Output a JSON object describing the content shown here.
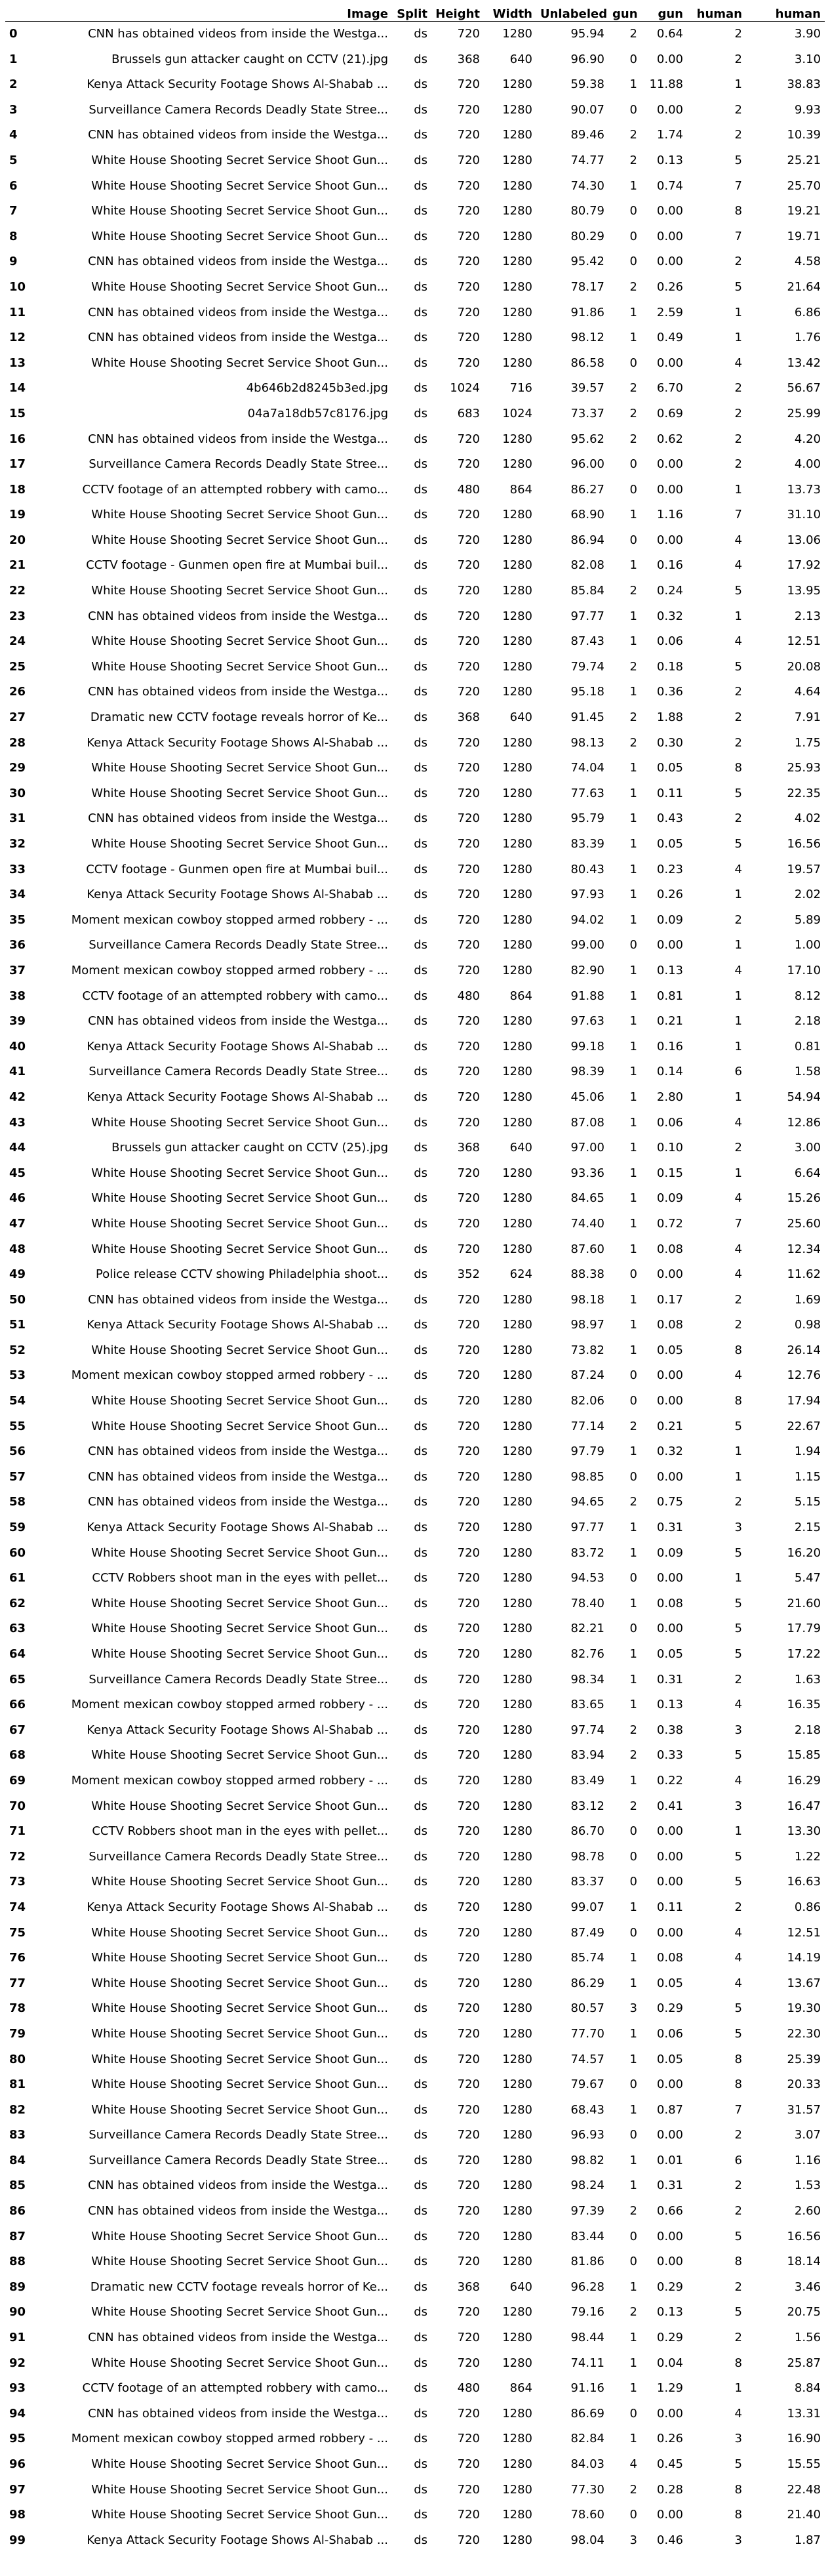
{
  "columns": [
    "",
    "Image",
    "Split",
    "Height",
    "Width",
    "Unlabeled",
    "gun",
    "gun",
    "human",
    "human"
  ],
  "rows": [
    [
      "0",
      "CNN has obtained videos from inside the Westga...",
      "ds",
      "720",
      "1280",
      "95.94",
      "2",
      "0.64",
      "2",
      "3.90"
    ],
    [
      "1",
      "Brussels gun attacker caught on CCTV (21).jpg",
      "ds",
      "368",
      "640",
      "96.90",
      "0",
      "0.00",
      "2",
      "3.10"
    ],
    [
      "2",
      "Kenya Attack Security Footage Shows Al-Shabab ...",
      "ds",
      "720",
      "1280",
      "59.38",
      "1",
      "11.88",
      "1",
      "38.83"
    ],
    [
      "3",
      "Surveillance Camera Records Deadly State Stree...",
      "ds",
      "720",
      "1280",
      "90.07",
      "0",
      "0.00",
      "2",
      "9.93"
    ],
    [
      "4",
      "CNN has obtained videos from inside the Westga...",
      "ds",
      "720",
      "1280",
      "89.46",
      "2",
      "1.74",
      "2",
      "10.39"
    ],
    [
      "5",
      "White House Shooting  Secret Service Shoot Gun...",
      "ds",
      "720",
      "1280",
      "74.77",
      "2",
      "0.13",
      "5",
      "25.21"
    ],
    [
      "6",
      "White House Shooting  Secret Service Shoot Gun...",
      "ds",
      "720",
      "1280",
      "74.30",
      "1",
      "0.74",
      "7",
      "25.70"
    ],
    [
      "7",
      "White House Shooting  Secret Service Shoot Gun...",
      "ds",
      "720",
      "1280",
      "80.79",
      "0",
      "0.00",
      "8",
      "19.21"
    ],
    [
      "8",
      "White House Shooting  Secret Service Shoot Gun...",
      "ds",
      "720",
      "1280",
      "80.29",
      "0",
      "0.00",
      "7",
      "19.71"
    ],
    [
      "9",
      "CNN has obtained videos from inside the Westga...",
      "ds",
      "720",
      "1280",
      "95.42",
      "0",
      "0.00",
      "2",
      "4.58"
    ],
    [
      "10",
      "White House Shooting  Secret Service Shoot Gun...",
      "ds",
      "720",
      "1280",
      "78.17",
      "2",
      "0.26",
      "5",
      "21.64"
    ],
    [
      "11",
      "CNN has obtained videos from inside the Westga...",
      "ds",
      "720",
      "1280",
      "91.86",
      "1",
      "2.59",
      "1",
      "6.86"
    ],
    [
      "12",
      "CNN has obtained videos from inside the Westga...",
      "ds",
      "720",
      "1280",
      "98.12",
      "1",
      "0.49",
      "1",
      "1.76"
    ],
    [
      "13",
      "White House Shooting  Secret Service Shoot Gun...",
      "ds",
      "720",
      "1280",
      "86.58",
      "0",
      "0.00",
      "4",
      "13.42"
    ],
    [
      "14",
      "4b646b2d8245b3ed.jpg",
      "ds",
      "1024",
      "716",
      "39.57",
      "2",
      "6.70",
      "2",
      "56.67"
    ],
    [
      "15",
      "04a7a18db57c8176.jpg",
      "ds",
      "683",
      "1024",
      "73.37",
      "2",
      "0.69",
      "2",
      "25.99"
    ],
    [
      "16",
      "CNN has obtained videos from inside the Westga...",
      "ds",
      "720",
      "1280",
      "95.62",
      "2",
      "0.62",
      "2",
      "4.20"
    ],
    [
      "17",
      "Surveillance Camera Records Deadly State Stree...",
      "ds",
      "720",
      "1280",
      "96.00",
      "0",
      "0.00",
      "2",
      "4.00"
    ],
    [
      "18",
      "CCTV footage of an attempted robbery with camo...",
      "ds",
      "480",
      "864",
      "86.27",
      "0",
      "0.00",
      "1",
      "13.73"
    ],
    [
      "19",
      "White House Shooting  Secret Service Shoot Gun...",
      "ds",
      "720",
      "1280",
      "68.90",
      "1",
      "1.16",
      "7",
      "31.10"
    ],
    [
      "20",
      "White House Shooting  Secret Service Shoot Gun...",
      "ds",
      "720",
      "1280",
      "86.94",
      "0",
      "0.00",
      "4",
      "13.06"
    ],
    [
      "21",
      "CCTV footage - Gunmen open fire at Mumbai buil...",
      "ds",
      "720",
      "1280",
      "82.08",
      "1",
      "0.16",
      "4",
      "17.92"
    ],
    [
      "22",
      "White House Shooting  Secret Service Shoot Gun...",
      "ds",
      "720",
      "1280",
      "85.84",
      "2",
      "0.24",
      "5",
      "13.95"
    ],
    [
      "23",
      "CNN has obtained videos from inside the Westga...",
      "ds",
      "720",
      "1280",
      "97.77",
      "1",
      "0.32",
      "1",
      "2.13"
    ],
    [
      "24",
      "White House Shooting  Secret Service Shoot Gun...",
      "ds",
      "720",
      "1280",
      "87.43",
      "1",
      "0.06",
      "4",
      "12.51"
    ],
    [
      "25",
      "White House Shooting  Secret Service Shoot Gun...",
      "ds",
      "720",
      "1280",
      "79.74",
      "2",
      "0.18",
      "5",
      "20.08"
    ],
    [
      "26",
      "CNN has obtained videos from inside the Westga...",
      "ds",
      "720",
      "1280",
      "95.18",
      "1",
      "0.36",
      "2",
      "4.64"
    ],
    [
      "27",
      "Dramatic new CCTV footage reveals horror of Ke...",
      "ds",
      "368",
      "640",
      "91.45",
      "2",
      "1.88",
      "2",
      "7.91"
    ],
    [
      "28",
      "Kenya Attack Security Footage Shows Al-Shabab ...",
      "ds",
      "720",
      "1280",
      "98.13",
      "2",
      "0.30",
      "2",
      "1.75"
    ],
    [
      "29",
      "White House Shooting  Secret Service Shoot Gun...",
      "ds",
      "720",
      "1280",
      "74.04",
      "1",
      "0.05",
      "8",
      "25.93"
    ],
    [
      "30",
      "White House Shooting  Secret Service Shoot Gun...",
      "ds",
      "720",
      "1280",
      "77.63",
      "1",
      "0.11",
      "5",
      "22.35"
    ],
    [
      "31",
      "CNN has obtained videos from inside the Westga...",
      "ds",
      "720",
      "1280",
      "95.79",
      "1",
      "0.43",
      "2",
      "4.02"
    ],
    [
      "32",
      "White House Shooting  Secret Service Shoot Gun...",
      "ds",
      "720",
      "1280",
      "83.39",
      "1",
      "0.05",
      "5",
      "16.56"
    ],
    [
      "33",
      "CCTV footage - Gunmen open fire at Mumbai buil...",
      "ds",
      "720",
      "1280",
      "80.43",
      "1",
      "0.23",
      "4",
      "19.57"
    ],
    [
      "34",
      "Kenya Attack Security Footage Shows Al-Shabab ...",
      "ds",
      "720",
      "1280",
      "97.93",
      "1",
      "0.26",
      "1",
      "2.02"
    ],
    [
      "35",
      "Moment mexican cowboy stopped armed robbery - ...",
      "ds",
      "720",
      "1280",
      "94.02",
      "1",
      "0.09",
      "2",
      "5.89"
    ],
    [
      "36",
      "Surveillance Camera Records Deadly State Stree...",
      "ds",
      "720",
      "1280",
      "99.00",
      "0",
      "0.00",
      "1",
      "1.00"
    ],
    [
      "37",
      "Moment mexican cowboy stopped armed robbery - ...",
      "ds",
      "720",
      "1280",
      "82.90",
      "1",
      "0.13",
      "4",
      "17.10"
    ],
    [
      "38",
      "CCTV footage of an attempted robbery with camo...",
      "ds",
      "480",
      "864",
      "91.88",
      "1",
      "0.81",
      "1",
      "8.12"
    ],
    [
      "39",
      "CNN has obtained videos from inside the Westga...",
      "ds",
      "720",
      "1280",
      "97.63",
      "1",
      "0.21",
      "1",
      "2.18"
    ],
    [
      "40",
      "Kenya Attack Security Footage Shows Al-Shabab ...",
      "ds",
      "720",
      "1280",
      "99.18",
      "1",
      "0.16",
      "1",
      "0.81"
    ],
    [
      "41",
      "Surveillance Camera Records Deadly State Stree...",
      "ds",
      "720",
      "1280",
      "98.39",
      "1",
      "0.14",
      "6",
      "1.58"
    ],
    [
      "42",
      "Kenya Attack Security Footage Shows Al-Shabab ...",
      "ds",
      "720",
      "1280",
      "45.06",
      "1",
      "2.80",
      "1",
      "54.94"
    ],
    [
      "43",
      "White House Shooting  Secret Service Shoot Gun...",
      "ds",
      "720",
      "1280",
      "87.08",
      "1",
      "0.06",
      "4",
      "12.86"
    ],
    [
      "44",
      "Brussels gun attacker caught on CCTV (25).jpg",
      "ds",
      "368",
      "640",
      "97.00",
      "1",
      "0.10",
      "2",
      "3.00"
    ],
    [
      "45",
      "White House Shooting  Secret Service Shoot Gun...",
      "ds",
      "720",
      "1280",
      "93.36",
      "1",
      "0.15",
      "1",
      "6.64"
    ],
    [
      "46",
      "White House Shooting  Secret Service Shoot Gun...",
      "ds",
      "720",
      "1280",
      "84.65",
      "1",
      "0.09",
      "4",
      "15.26"
    ],
    [
      "47",
      "White House Shooting  Secret Service Shoot Gun...",
      "ds",
      "720",
      "1280",
      "74.40",
      "1",
      "0.72",
      "7",
      "25.60"
    ],
    [
      "48",
      "White House Shooting  Secret Service Shoot Gun...",
      "ds",
      "720",
      "1280",
      "87.60",
      "1",
      "0.08",
      "4",
      "12.34"
    ],
    [
      "49",
      "Police release CCTV showing Philadelphia shoot...",
      "ds",
      "352",
      "624",
      "88.38",
      "0",
      "0.00",
      "4",
      "11.62"
    ],
    [
      "50",
      "CNN has obtained videos from inside the Westga...",
      "ds",
      "720",
      "1280",
      "98.18",
      "1",
      "0.17",
      "2",
      "1.69"
    ],
    [
      "51",
      "Kenya Attack Security Footage Shows Al-Shabab ...",
      "ds",
      "720",
      "1280",
      "98.97",
      "1",
      "0.08",
      "2",
      "0.98"
    ],
    [
      "52",
      "White House Shooting  Secret Service Shoot Gun...",
      "ds",
      "720",
      "1280",
      "73.82",
      "1",
      "0.05",
      "8",
      "26.14"
    ],
    [
      "53",
      "Moment mexican cowboy stopped armed robbery - ...",
      "ds",
      "720",
      "1280",
      "87.24",
      "0",
      "0.00",
      "4",
      "12.76"
    ],
    [
      "54",
      "White House Shooting  Secret Service Shoot Gun...",
      "ds",
      "720",
      "1280",
      "82.06",
      "0",
      "0.00",
      "8",
      "17.94"
    ],
    [
      "55",
      "White House Shooting  Secret Service Shoot Gun...",
      "ds",
      "720",
      "1280",
      "77.14",
      "2",
      "0.21",
      "5",
      "22.67"
    ],
    [
      "56",
      "CNN has obtained videos from inside the Westga...",
      "ds",
      "720",
      "1280",
      "97.79",
      "1",
      "0.32",
      "1",
      "1.94"
    ],
    [
      "57",
      "CNN has obtained videos from inside the Westga...",
      "ds",
      "720",
      "1280",
      "98.85",
      "0",
      "0.00",
      "1",
      "1.15"
    ],
    [
      "58",
      "CNN has obtained videos from inside the Westga...",
      "ds",
      "720",
      "1280",
      "94.65",
      "2",
      "0.75",
      "2",
      "5.15"
    ],
    [
      "59",
      "Kenya Attack Security Footage Shows Al-Shabab ...",
      "ds",
      "720",
      "1280",
      "97.77",
      "1",
      "0.31",
      "3",
      "2.15"
    ],
    [
      "60",
      "White House Shooting  Secret Service Shoot Gun...",
      "ds",
      "720",
      "1280",
      "83.72",
      "1",
      "0.09",
      "5",
      "16.20"
    ],
    [
      "61",
      "CCTV Robbers shoot man in the eyes with pellet...",
      "ds",
      "720",
      "1280",
      "94.53",
      "0",
      "0.00",
      "1",
      "5.47"
    ],
    [
      "62",
      "White House Shooting  Secret Service Shoot Gun...",
      "ds",
      "720",
      "1280",
      "78.40",
      "1",
      "0.08",
      "5",
      "21.60"
    ],
    [
      "63",
      "White House Shooting  Secret Service Shoot Gun...",
      "ds",
      "720",
      "1280",
      "82.21",
      "0",
      "0.00",
      "5",
      "17.79"
    ],
    [
      "64",
      "White House Shooting  Secret Service Shoot Gun...",
      "ds",
      "720",
      "1280",
      "82.76",
      "1",
      "0.05",
      "5",
      "17.22"
    ],
    [
      "65",
      "Surveillance Camera Records Deadly State Stree...",
      "ds",
      "720",
      "1280",
      "98.34",
      "1",
      "0.31",
      "2",
      "1.63"
    ],
    [
      "66",
      "Moment mexican cowboy stopped armed robbery - ...",
      "ds",
      "720",
      "1280",
      "83.65",
      "1",
      "0.13",
      "4",
      "16.35"
    ],
    [
      "67",
      "Kenya Attack Security Footage Shows Al-Shabab ...",
      "ds",
      "720",
      "1280",
      "97.74",
      "2",
      "0.38",
      "3",
      "2.18"
    ],
    [
      "68",
      "White House Shooting  Secret Service Shoot Gun...",
      "ds",
      "720",
      "1280",
      "83.94",
      "2",
      "0.33",
      "5",
      "15.85"
    ],
    [
      "69",
      "Moment mexican cowboy stopped armed robbery - ...",
      "ds",
      "720",
      "1280",
      "83.49",
      "1",
      "0.22",
      "4",
      "16.29"
    ],
    [
      "70",
      "White House Shooting  Secret Service Shoot Gun...",
      "ds",
      "720",
      "1280",
      "83.12",
      "2",
      "0.41",
      "3",
      "16.47"
    ],
    [
      "71",
      "CCTV Robbers shoot man in the eyes with pellet...",
      "ds",
      "720",
      "1280",
      "86.70",
      "0",
      "0.00",
      "1",
      "13.30"
    ],
    [
      "72",
      "Surveillance Camera Records Deadly State Stree...",
      "ds",
      "720",
      "1280",
      "98.78",
      "0",
      "0.00",
      "5",
      "1.22"
    ],
    [
      "73",
      "White House Shooting  Secret Service Shoot Gun...",
      "ds",
      "720",
      "1280",
      "83.37",
      "0",
      "0.00",
      "5",
      "16.63"
    ],
    [
      "74",
      "Kenya Attack Security Footage Shows Al-Shabab ...",
      "ds",
      "720",
      "1280",
      "99.07",
      "1",
      "0.11",
      "2",
      "0.86"
    ],
    [
      "75",
      "White House Shooting  Secret Service Shoot Gun...",
      "ds",
      "720",
      "1280",
      "87.49",
      "0",
      "0.00",
      "4",
      "12.51"
    ],
    [
      "76",
      "White House Shooting  Secret Service Shoot Gun...",
      "ds",
      "720",
      "1280",
      "85.74",
      "1",
      "0.08",
      "4",
      "14.19"
    ],
    [
      "77",
      "White House Shooting  Secret Service Shoot Gun...",
      "ds",
      "720",
      "1280",
      "86.29",
      "1",
      "0.05",
      "4",
      "13.67"
    ],
    [
      "78",
      "White House Shooting  Secret Service Shoot Gun...",
      "ds",
      "720",
      "1280",
      "80.57",
      "3",
      "0.29",
      "5",
      "19.30"
    ],
    [
      "79",
      "White House Shooting  Secret Service Shoot Gun...",
      "ds",
      "720",
      "1280",
      "77.70",
      "1",
      "0.06",
      "5",
      "22.30"
    ],
    [
      "80",
      "White House Shooting  Secret Service Shoot Gun...",
      "ds",
      "720",
      "1280",
      "74.57",
      "1",
      "0.05",
      "8",
      "25.39"
    ],
    [
      "81",
      "White House Shooting  Secret Service Shoot Gun...",
      "ds",
      "720",
      "1280",
      "79.67",
      "0",
      "0.00",
      "8",
      "20.33"
    ],
    [
      "82",
      "White House Shooting  Secret Service Shoot Gun...",
      "ds",
      "720",
      "1280",
      "68.43",
      "1",
      "0.87",
      "7",
      "31.57"
    ],
    [
      "83",
      "Surveillance Camera Records Deadly State Stree...",
      "ds",
      "720",
      "1280",
      "96.93",
      "0",
      "0.00",
      "2",
      "3.07"
    ],
    [
      "84",
      "Surveillance Camera Records Deadly State Stree...",
      "ds",
      "720",
      "1280",
      "98.82",
      "1",
      "0.01",
      "6",
      "1.16"
    ],
    [
      "85",
      "CNN has obtained videos from inside the Westga...",
      "ds",
      "720",
      "1280",
      "98.24",
      "1",
      "0.31",
      "2",
      "1.53"
    ],
    [
      "86",
      "CNN has obtained videos from inside the Westga...",
      "ds",
      "720",
      "1280",
      "97.39",
      "2",
      "0.66",
      "2",
      "2.60"
    ],
    [
      "87",
      "White House Shooting  Secret Service Shoot Gun...",
      "ds",
      "720",
      "1280",
      "83.44",
      "0",
      "0.00",
      "5",
      "16.56"
    ],
    [
      "88",
      "White House Shooting  Secret Service Shoot Gun...",
      "ds",
      "720",
      "1280",
      "81.86",
      "0",
      "0.00",
      "8",
      "18.14"
    ],
    [
      "89",
      "Dramatic new CCTV footage reveals horror of Ke...",
      "ds",
      "368",
      "640",
      "96.28",
      "1",
      "0.29",
      "2",
      "3.46"
    ],
    [
      "90",
      "White House Shooting  Secret Service Shoot Gun...",
      "ds",
      "720",
      "1280",
      "79.16",
      "2",
      "0.13",
      "5",
      "20.75"
    ],
    [
      "91",
      "CNN has obtained videos from inside the Westga...",
      "ds",
      "720",
      "1280",
      "98.44",
      "1",
      "0.29",
      "2",
      "1.56"
    ],
    [
      "92",
      "White House Shooting  Secret Service Shoot Gun...",
      "ds",
      "720",
      "1280",
      "74.11",
      "1",
      "0.04",
      "8",
      "25.87"
    ],
    [
      "93",
      "CCTV footage of an attempted robbery with camo...",
      "ds",
      "480",
      "864",
      "91.16",
      "1",
      "1.29",
      "1",
      "8.84"
    ],
    [
      "94",
      "CNN has obtained videos from inside the Westga...",
      "ds",
      "720",
      "1280",
      "86.69",
      "0",
      "0.00",
      "4",
      "13.31"
    ],
    [
      "95",
      "Moment mexican cowboy stopped armed robbery - ...",
      "ds",
      "720",
      "1280",
      "82.84",
      "1",
      "0.26",
      "3",
      "16.90"
    ],
    [
      "96",
      "White House Shooting  Secret Service Shoot Gun...",
      "ds",
      "720",
      "1280",
      "84.03",
      "4",
      "0.45",
      "5",
      "15.55"
    ],
    [
      "97",
      "White House Shooting  Secret Service Shoot Gun...",
      "ds",
      "720",
      "1280",
      "77.30",
      "2",
      "0.28",
      "8",
      "22.48"
    ],
    [
      "98",
      "White House Shooting  Secret Service Shoot Gun...",
      "ds",
      "720",
      "1280",
      "78.60",
      "0",
      "0.00",
      "8",
      "21.40"
    ],
    [
      "99",
      "Kenya Attack Security Footage Shows Al-Shabab ...",
      "ds",
      "720",
      "1280",
      "98.04",
      "3",
      "0.46",
      "3",
      "1.87"
    ]
  ]
}
